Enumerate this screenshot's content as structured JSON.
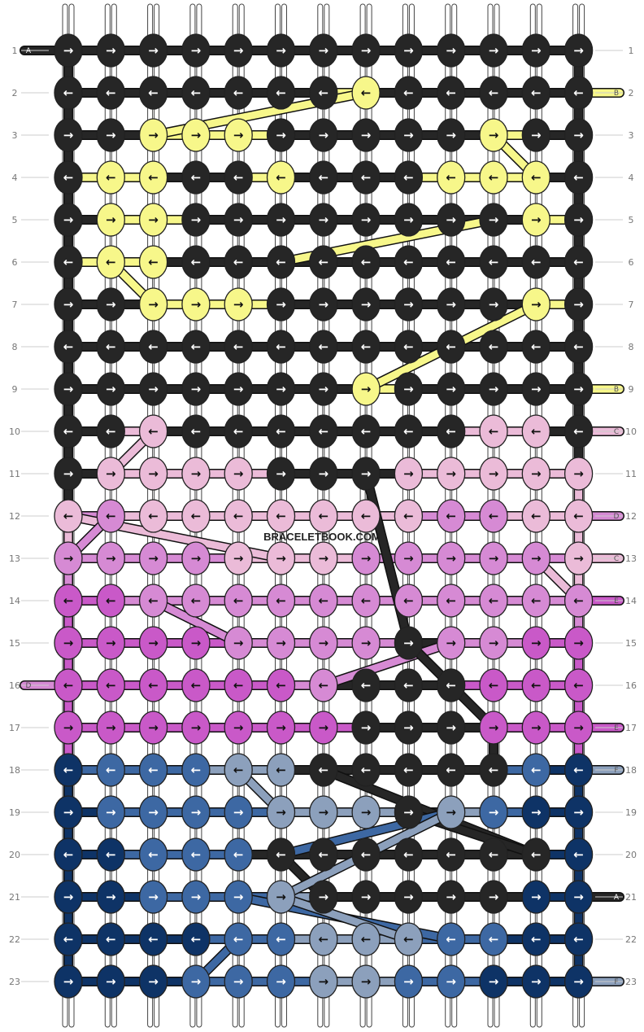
{
  "watermark": "BRACELETBOOK.COM",
  "colors": {
    "A": "#262626",
    "B": "#F7F78A",
    "C": "#EBBBD8",
    "D": "#D68AD4",
    "E": "#C959C8",
    "F": "#8CA0BC",
    "G": "#3D68A3",
    "H": "#0E3366"
  },
  "row_labels": [
    "1",
    "2",
    "3",
    "4",
    "5",
    "6",
    "7",
    "8",
    "9",
    "10",
    "11",
    "12",
    "13",
    "14",
    "15",
    "16",
    "17",
    "18",
    "19",
    "20",
    "21",
    "22",
    "23"
  ],
  "end_letters": [
    {
      "row": 1,
      "side": "left",
      "letter": "A"
    },
    {
      "row": 2,
      "side": "right",
      "letter": "B"
    },
    {
      "row": 9,
      "side": "right",
      "letter": "B"
    },
    {
      "row": 10,
      "side": "right",
      "letter": "C"
    },
    {
      "row": 12,
      "side": "right",
      "letter": "D"
    },
    {
      "row": 13,
      "side": "right",
      "letter": "C"
    },
    {
      "row": 14,
      "side": "right",
      "letter": "E"
    },
    {
      "row": 16,
      "side": "left",
      "letter": "D"
    },
    {
      "row": 17,
      "side": "right",
      "letter": "E"
    },
    {
      "row": 18,
      "side": "right",
      "letter": "F"
    },
    {
      "row": 21,
      "side": "right",
      "letter": "A"
    },
    {
      "row": 23,
      "side": "right",
      "letter": "F"
    }
  ],
  "knot_rows": [
    {
      "dir": "right",
      "knots": "AAAAAAAAAAAAA"
    },
    {
      "dir": "left",
      "knots": "AAAAAAABAAAAA"
    },
    {
      "dir": "right",
      "knots": "AABBBAAAAABAA"
    },
    {
      "dir": "left",
      "knots": "ABBAABAAABBBA"
    },
    {
      "dir": "right",
      "knots": "ABBAAAAAAAABA"
    },
    {
      "dir": "left",
      "knots": "ABBAAAAAAAAAA"
    },
    {
      "dir": "right",
      "knots": "AABBBAAAAAABA"
    },
    {
      "dir": "left",
      "knots": "AAAAAAAAAAAAA"
    },
    {
      "dir": "right",
      "knots": "AAAAAAABAAAAA"
    },
    {
      "dir": "left",
      "knots": "AACAAAAAAACCA"
    },
    {
      "dir": "right",
      "knots": "ACCCCAAACCCCC"
    },
    {
      "dir": "left",
      "knots": "CDCCCCCCCDDCC"
    },
    {
      "dir": "right",
      "knots": "DDDDCCCDDDDDC"
    },
    {
      "dir": "left",
      "knots": "EEDDDDDDDDDDD"
    },
    {
      "dir": "right",
      "knots": "EEEEDDDDADDEE"
    },
    {
      "dir": "left",
      "knots": "EEEEEEDAAAEEE"
    },
    {
      "dir": "right",
      "knots": "EEEEEEEAAAEEE"
    },
    {
      "dir": "left",
      "knots": "HGGGFFAAAAAGH"
    },
    {
      "dir": "right",
      "knots": "HGGGGFFFAFGHH"
    },
    {
      "dir": "left",
      "knots": "HHGGGAAAAAAAH"
    },
    {
      "dir": "right",
      "knots": "HHGGGFAAAAAHH"
    },
    {
      "dir": "left",
      "knots": "HHHHGGFFFGGHH"
    },
    {
      "dir": "right",
      "knots": "HHHGGGFFGGHHH"
    }
  ],
  "thread_segments": [
    {
      "color": "B",
      "from": [
        8,
        2
      ],
      "to": [
        3,
        3
      ]
    },
    {
      "color": "B",
      "from": [
        11,
        3
      ],
      "to": [
        12,
        4
      ]
    },
    {
      "color": "B",
      "from": [
        11,
        5
      ],
      "to": [
        6,
        6
      ]
    },
    {
      "color": "B",
      "from": [
        2,
        6
      ],
      "to": [
        3,
        7
      ]
    },
    {
      "color": "B",
      "from": [
        12,
        7
      ],
      "to": [
        10,
        8
      ]
    },
    {
      "color": "B",
      "from": [
        10,
        8
      ],
      "to": [
        8,
        9
      ]
    },
    {
      "color": "C",
      "from": [
        3,
        10
      ],
      "to": [
        2,
        11
      ]
    },
    {
      "color": "C",
      "from": [
        1,
        12
      ],
      "to": [
        6,
        13
      ]
    },
    {
      "color": "C",
      "from": [
        12,
        13
      ],
      "to": [
        13,
        14
      ]
    },
    {
      "color": "D",
      "from": [
        2,
        12
      ],
      "to": [
        1,
        13
      ]
    },
    {
      "color": "D",
      "from": [
        3,
        14
      ],
      "to": [
        5,
        15
      ]
    },
    {
      "color": "D",
      "from": [
        10,
        15
      ],
      "to": [
        7,
        16
      ]
    },
    {
      "color": "A",
      "from": [
        8,
        11
      ],
      "to": [
        9,
        15
      ]
    },
    {
      "color": "A",
      "from": [
        9,
        15
      ],
      "to": [
        11,
        17
      ]
    },
    {
      "color": "A",
      "from": [
        11,
        17
      ],
      "to": [
        11,
        18
      ]
    },
    {
      "color": "A",
      "from": [
        7,
        18
      ],
      "to": [
        12,
        20
      ]
    },
    {
      "color": "A",
      "from": [
        9,
        19
      ],
      "to": [
        12,
        20
      ]
    },
    {
      "color": "A",
      "from": [
        6,
        20
      ],
      "to": [
        7,
        21
      ]
    },
    {
      "color": "F",
      "from": [
        5,
        18
      ],
      "to": [
        6,
        19
      ]
    },
    {
      "color": "G",
      "from": [
        10,
        19
      ],
      "to": [
        6,
        20
      ]
    },
    {
      "color": "F",
      "from": [
        10,
        19
      ],
      "to": [
        6,
        21
      ]
    },
    {
      "color": "G",
      "from": [
        5,
        21
      ],
      "to": [
        10,
        22
      ]
    },
    {
      "color": "F",
      "from": [
        6,
        21
      ],
      "to": [
        9,
        22
      ]
    },
    {
      "color": "G",
      "from": [
        5,
        22
      ],
      "to": [
        4,
        23
      ]
    }
  ]
}
